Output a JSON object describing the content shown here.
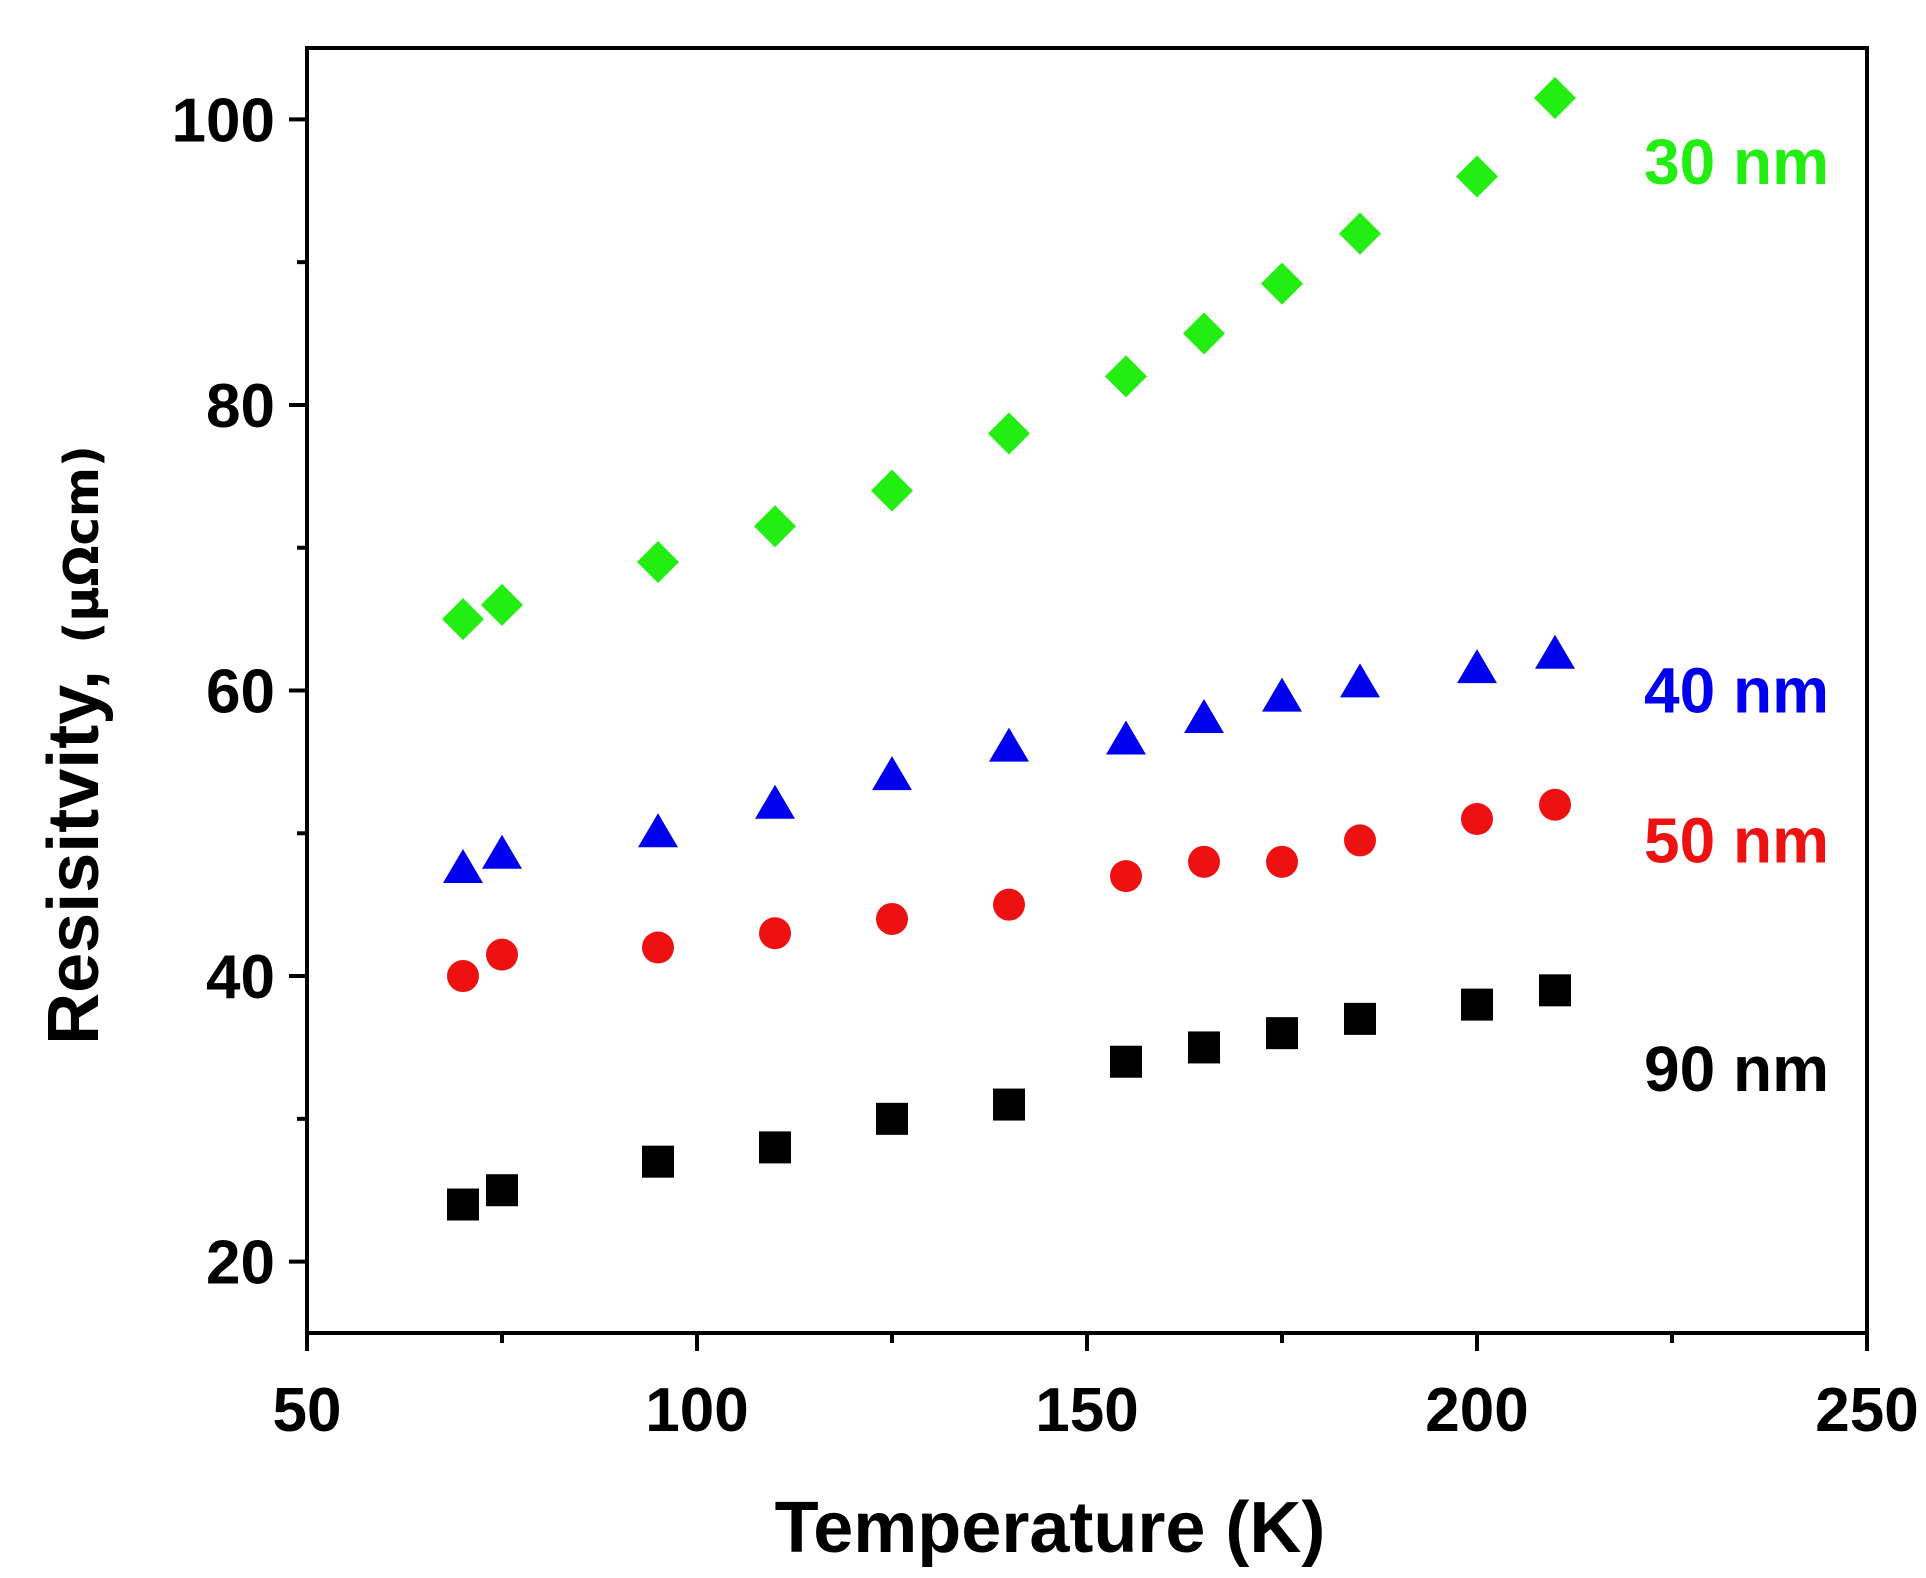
{
  "chart_data": {
    "type": "scatter",
    "title": "",
    "xlabel": "Temperature (K)",
    "ylabel": "Resisitvity,",
    "ylabel_unit": "(μΩcm)",
    "xlim": [
      50,
      250
    ],
    "ylim": [
      15,
      105
    ],
    "x_ticks": [
      50,
      100,
      150,
      200,
      250
    ],
    "x_tick_labels": [
      "50",
      "100",
      "150",
      "200",
      "250"
    ],
    "y_ticks": [
      20,
      40,
      60,
      80,
      100
    ],
    "y_tick_labels": [
      "20",
      "40",
      "60",
      "80",
      "100"
    ],
    "grid": false,
    "legend": "inline labels at right",
    "series": [
      {
        "name": "30 nm",
        "marker": "diamond",
        "color": "#22ee11",
        "x": [
          70,
          75,
          95,
          110,
          125,
          140,
          155,
          165,
          175,
          185,
          200,
          210
        ],
        "values": [
          65,
          66,
          69,
          71.5,
          74,
          78,
          82,
          85,
          88.5,
          92,
          96,
          101.5
        ]
      },
      {
        "name": "40 nm",
        "marker": "triangle",
        "color": "#0000ee",
        "x": [
          70,
          75,
          95,
          110,
          125,
          140,
          155,
          165,
          175,
          185,
          200,
          210
        ],
        "values": [
          47.5,
          48.5,
          50,
          52,
          54,
          56,
          56.5,
          58,
          59.5,
          60.5,
          61.5,
          62.5
        ]
      },
      {
        "name": "50 nm",
        "marker": "circle",
        "color": "#ee1111",
        "x": [
          70,
          75,
          95,
          110,
          125,
          140,
          155,
          165,
          175,
          185,
          200,
          210
        ],
        "values": [
          40,
          41.5,
          42,
          43,
          44,
          45,
          47,
          48,
          48,
          49.5,
          51,
          52
        ]
      },
      {
        "name": "90 nm",
        "marker": "square",
        "color": "#000000",
        "x": [
          70,
          75,
          95,
          110,
          125,
          140,
          155,
          165,
          175,
          185,
          200,
          210
        ],
        "values": [
          24,
          25,
          27,
          28,
          30,
          31,
          34,
          35,
          36,
          37,
          38,
          39
        ]
      }
    ]
  }
}
